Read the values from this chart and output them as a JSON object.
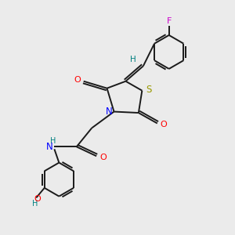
{
  "background_color": "#ebebeb",
  "bond_color": "#1a1a1a",
  "figsize": [
    3.0,
    3.0
  ],
  "dpi": 100,
  "xlim": [
    0,
    10
  ],
  "ylim": [
    0,
    10
  ]
}
